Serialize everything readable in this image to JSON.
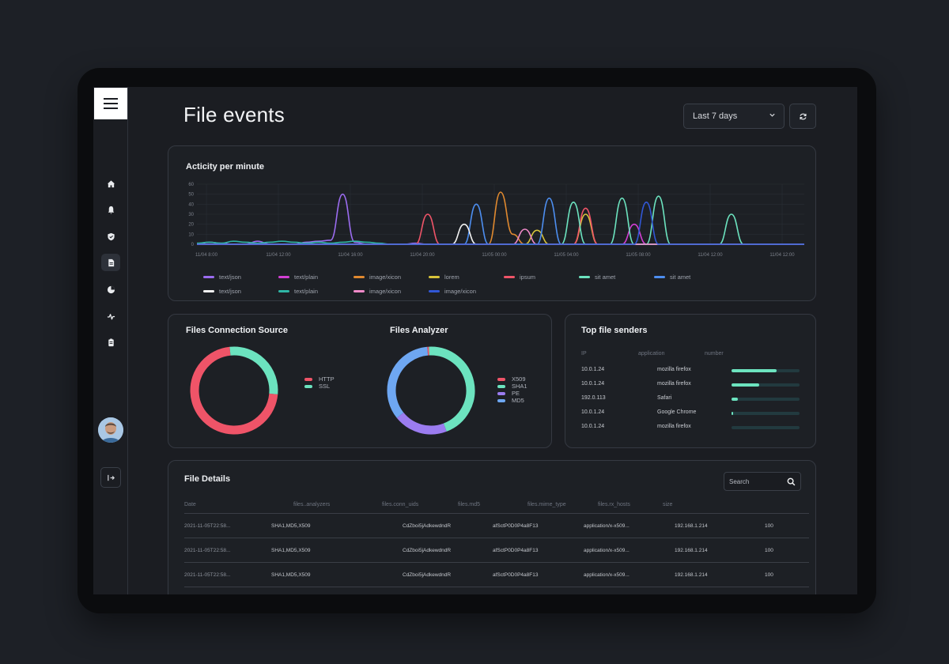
{
  "page": {
    "title": "File events"
  },
  "header": {
    "range_label": "Last 7 days"
  },
  "sidebar": {
    "items": [
      {
        "icon": "home-icon"
      },
      {
        "icon": "bell-icon"
      },
      {
        "icon": "shield-icon"
      },
      {
        "icon": "file-icon",
        "active": true
      },
      {
        "icon": "chart-pie-icon"
      },
      {
        "icon": "activity-icon"
      },
      {
        "icon": "document-icon"
      }
    ]
  },
  "activity": {
    "title": "Acticity per minute",
    "legend": [
      [
        "text/json",
        "text/plain",
        "image/xicon",
        "lorem",
        "ipsum",
        "sit amet",
        "sit amet"
      ],
      [
        "text/json",
        "text/plain",
        "image/xicon",
        "image/xicon"
      ]
    ],
    "legend_colors": [
      [
        "#9b6cf0",
        "#d23fd4",
        "#e0892f",
        "#d7c33a",
        "#ef5468",
        "#6ce3bf",
        "#4d8ef0"
      ],
      [
        "#f2f2f2",
        "#2fb6a6",
        "#f08ac9",
        "#3157d6"
      ]
    ]
  },
  "chart_data": {
    "type": "line",
    "title": "Acticity per minute",
    "ylim": [
      0,
      60
    ],
    "yticks": [
      "0",
      "10",
      "20",
      "30",
      "40",
      "50",
      "60"
    ],
    "xticks": [
      "11/04 8:00",
      "11/04 12:00",
      "11/04 16:00",
      "11/04 20:00",
      "11/05 00:00",
      "11/05 04:00",
      "11/05 08:00",
      "11/04 12:00",
      "11/04 12:00"
    ],
    "grid": true,
    "series": [
      {
        "name": "text/json",
        "color": "#9b6cf0",
        "values": [
          0,
          2,
          1,
          0,
          0,
          3,
          0,
          0,
          0,
          2,
          3,
          4,
          50,
          2,
          0,
          0,
          0,
          0,
          1,
          0,
          0,
          0,
          0,
          0,
          0,
          0,
          0,
          0,
          0,
          0,
          0,
          0,
          0,
          0,
          0,
          0,
          0,
          0,
          0,
          0,
          0,
          0,
          0,
          0,
          0,
          0,
          0,
          0,
          0,
          0,
          0
        ]
      },
      {
        "name": "text/plain",
        "color": "#d23fd4",
        "values": [
          0,
          0,
          0,
          0,
          0,
          0,
          0,
          0,
          0,
          0,
          0,
          0,
          0,
          0,
          0,
          0,
          0,
          0,
          0,
          0,
          0,
          0,
          0,
          0,
          0,
          0,
          0,
          0,
          0,
          0,
          0,
          0,
          0,
          0,
          0,
          0,
          20,
          0,
          0,
          0,
          0,
          0,
          0,
          0,
          0,
          0,
          0,
          0,
          0,
          0,
          0
        ]
      },
      {
        "name": "image/xicon",
        "color": "#e0892f",
        "values": [
          0,
          0,
          0,
          0,
          0,
          0,
          0,
          0,
          0,
          0,
          0,
          0,
          0,
          0,
          0,
          0,
          0,
          0,
          0,
          0,
          0,
          0,
          0,
          0,
          0,
          52,
          10,
          0,
          0,
          0,
          0,
          0,
          0,
          0,
          0,
          0,
          0,
          0,
          0,
          0,
          0,
          0,
          0,
          0,
          0,
          0,
          0,
          0,
          0,
          0,
          0
        ]
      },
      {
        "name": "lorem",
        "color": "#d7c33a",
        "values": [
          0,
          0,
          0,
          0,
          0,
          0,
          0,
          0,
          0,
          0,
          0,
          0,
          0,
          0,
          0,
          0,
          0,
          0,
          0,
          0,
          0,
          0,
          0,
          0,
          0,
          0,
          0,
          0,
          14,
          0,
          0,
          0,
          30,
          0,
          0,
          0,
          0,
          0,
          0,
          0,
          0,
          0,
          0,
          0,
          0,
          0,
          0,
          0,
          0,
          0,
          0
        ]
      },
      {
        "name": "ipsum",
        "color": "#ef5468",
        "values": [
          0,
          0,
          0,
          0,
          0,
          0,
          0,
          0,
          0,
          0,
          0,
          0,
          0,
          0,
          0,
          0,
          0,
          0,
          0,
          30,
          0,
          0,
          0,
          0,
          0,
          0,
          0,
          0,
          0,
          0,
          0,
          0,
          36,
          0,
          0,
          0,
          0,
          0,
          0,
          0,
          0,
          0,
          0,
          0,
          0,
          0,
          0,
          0,
          0,
          0,
          0
        ]
      },
      {
        "name": "sit amet",
        "color": "#6ce3bf",
        "values": [
          0,
          0,
          0,
          0,
          0,
          0,
          0,
          0,
          0,
          0,
          0,
          0,
          0,
          0,
          0,
          0,
          0,
          0,
          0,
          0,
          0,
          0,
          0,
          0,
          0,
          0,
          0,
          0,
          0,
          0,
          0,
          42,
          0,
          0,
          0,
          46,
          0,
          0,
          48,
          0,
          0,
          0,
          0,
          0,
          30,
          0,
          0,
          0,
          0,
          0,
          0
        ]
      },
      {
        "name": "sit amet",
        "color": "#4d8ef0",
        "values": [
          0,
          0,
          0,
          0,
          0,
          0,
          0,
          0,
          0,
          0,
          0,
          0,
          0,
          0,
          0,
          0,
          0,
          0,
          0,
          0,
          0,
          0,
          0,
          40,
          0,
          0,
          0,
          0,
          0,
          46,
          0,
          0,
          0,
          0,
          0,
          0,
          0,
          0,
          0,
          0,
          0,
          0,
          0,
          0,
          0,
          0,
          0,
          0,
          0,
          0,
          0
        ]
      },
      {
        "name": "text/json",
        "color": "#f2f2f2",
        "values": [
          0,
          0,
          0,
          0,
          0,
          0,
          0,
          0,
          0,
          0,
          0,
          0,
          0,
          0,
          0,
          0,
          0,
          0,
          0,
          0,
          0,
          0,
          20,
          0,
          0,
          0,
          0,
          0,
          0,
          0,
          0,
          0,
          0,
          0,
          0,
          0,
          0,
          0,
          0,
          0,
          0,
          0,
          0,
          0,
          0,
          0,
          0,
          0,
          0,
          0,
          0
        ]
      },
      {
        "name": "text/plain",
        "color": "#2fb6a6",
        "values": [
          1,
          2,
          1,
          3,
          2,
          1,
          2,
          3,
          2,
          1,
          2,
          1,
          2,
          3,
          2,
          1,
          0,
          0,
          0,
          0,
          0,
          0,
          0,
          0,
          0,
          0,
          0,
          0,
          0,
          0,
          0,
          0,
          0,
          0,
          0,
          0,
          0,
          0,
          0,
          0,
          0,
          0,
          0,
          0,
          0,
          0,
          0,
          0,
          0,
          0,
          0
        ]
      },
      {
        "name": "image/xicon",
        "color": "#f08ac9",
        "values": [
          0,
          0,
          0,
          0,
          0,
          0,
          0,
          0,
          0,
          0,
          0,
          0,
          0,
          0,
          0,
          0,
          0,
          0,
          0,
          0,
          0,
          0,
          0,
          0,
          0,
          0,
          0,
          15,
          0,
          0,
          0,
          0,
          0,
          0,
          0,
          0,
          0,
          0,
          0,
          0,
          0,
          0,
          0,
          0,
          0,
          0,
          0,
          0,
          0,
          0,
          0
        ]
      },
      {
        "name": "image/xicon",
        "color": "#3157d6",
        "values": [
          0,
          0,
          0,
          0,
          0,
          0,
          0,
          0,
          0,
          0,
          0,
          0,
          0,
          0,
          0,
          0,
          0,
          0,
          0,
          0,
          0,
          0,
          0,
          0,
          0,
          0,
          0,
          0,
          0,
          0,
          0,
          0,
          0,
          0,
          0,
          0,
          0,
          42,
          0,
          0,
          0,
          0,
          0,
          0,
          0,
          0,
          0,
          0,
          0,
          0,
          0
        ]
      }
    ]
  },
  "connection_source": {
    "title": "Files Connection Source",
    "slices": [
      {
        "label": "HTTP",
        "value": 72,
        "color": "#ef5468"
      },
      {
        "label": "SSL",
        "value": 28,
        "color": "#6ce3bf"
      }
    ]
  },
  "analyzer": {
    "title": "Files Analyzer",
    "slices": [
      {
        "label": "X509",
        "value": 0.6,
        "color": "#ef5468"
      },
      {
        "label": "SHA1",
        "value": 45,
        "color": "#6ce3bf"
      },
      {
        "label": "PE",
        "value": 20,
        "color": "#9b7cf0"
      },
      {
        "label": "MD5",
        "value": 34.4,
        "color": "#6ea7f2"
      }
    ]
  },
  "senders": {
    "title": "Top file senders",
    "columns": [
      "IP",
      "application",
      "number"
    ],
    "rows": [
      {
        "ip": "10.0.1.24",
        "app": "mozilla firefox",
        "value": 0.66
      },
      {
        "ip": "10.0.1.24",
        "app": "mozilla firefox",
        "value": 0.41
      },
      {
        "ip": "192.0.113",
        "app": "Safari",
        "value": 0.09
      },
      {
        "ip": "10.0.1.24",
        "app": "Google Chrome",
        "value": 0.02
      },
      {
        "ip": "10.0.1.24",
        "app": "mozilla firefox",
        "value": 0.0
      }
    ]
  },
  "details": {
    "title": "File Details",
    "search_placeholder": "Search",
    "columns": [
      "Date",
      "files..analyzers",
      "files.conn_uids",
      "files.md5",
      "files.mime_type",
      "files.rx_hosts",
      "size"
    ],
    "rows": [
      [
        "2021-11-05T22:58...",
        "SHA1,MD5,X509",
        "CdZboi5jAdkewdndR",
        "afSctP0D0P4a8F13",
        "application/x-x509...",
        "192.168.1.214",
        "100"
      ],
      [
        "2021-11-05T22:58...",
        "SHA1,MD5,X509",
        "CdZboi5jAdkewdndR",
        "afSctP0D0P4a8F13",
        "application/x-x509...",
        "192.168.1.214",
        "100"
      ],
      [
        "2021-11-05T22:58...",
        "SHA1,MD5,X509",
        "CdZboi5jAdkewdndR",
        "afSctP0D0P4a8F13",
        "application/x-x509...",
        "192.168.1.214",
        "100"
      ]
    ]
  }
}
